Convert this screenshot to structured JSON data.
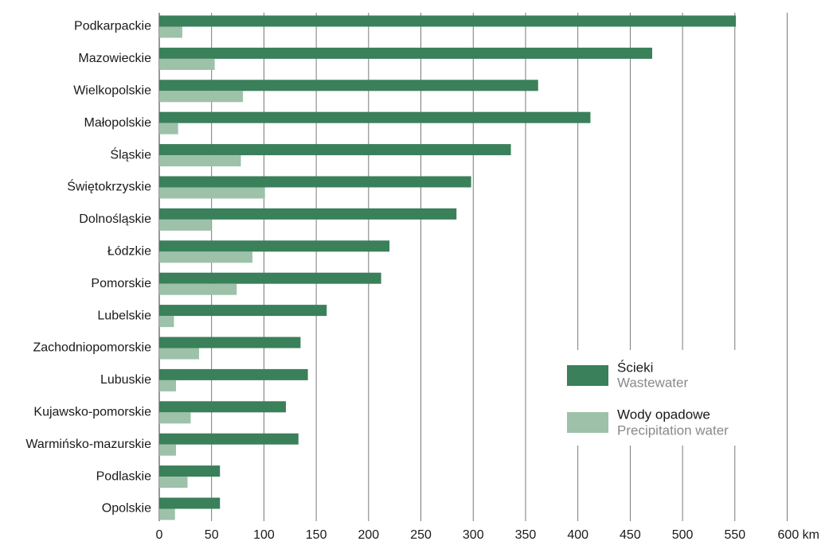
{
  "chart_data": {
    "type": "bar",
    "orientation": "horizontal",
    "categories": [
      "Podkarpackie",
      "Mazowieckie",
      "Wielkopolskie",
      "Małopolskie",
      "Śląskie",
      "Świętokrzyskie",
      "Dolnośląskie",
      "Łódzkie",
      "Pomorskie",
      "Lubelskie",
      "Zachodniopomorskie",
      "Lubuskie",
      "Kujawsko-pomorskie",
      "Warmińsko-mazurskie",
      "Podlaskie",
      "Opolskie"
    ],
    "series": [
      {
        "name": "Ścieki",
        "name_en": "Wastewater",
        "color": "#3a805a",
        "values": [
          551,
          471,
          362,
          412,
          336,
          298,
          284,
          220,
          212,
          160,
          135,
          142,
          121,
          133,
          58,
          58
        ]
      },
      {
        "name": "Wody opadowe",
        "name_en": "Precipitation water",
        "color": "#9dc1a9",
        "values": [
          22,
          53,
          80,
          18,
          78,
          101,
          50,
          89,
          74,
          14,
          38,
          16,
          30,
          16,
          27,
          15
        ]
      }
    ],
    "xlim": [
      0,
      600
    ],
    "xticks": [
      "0",
      "50",
      "100",
      "150",
      "200",
      "250",
      "300",
      "350",
      "400",
      "450",
      "500",
      "550",
      "600 km"
    ],
    "grid": true,
    "legend_position": "lower-right"
  }
}
